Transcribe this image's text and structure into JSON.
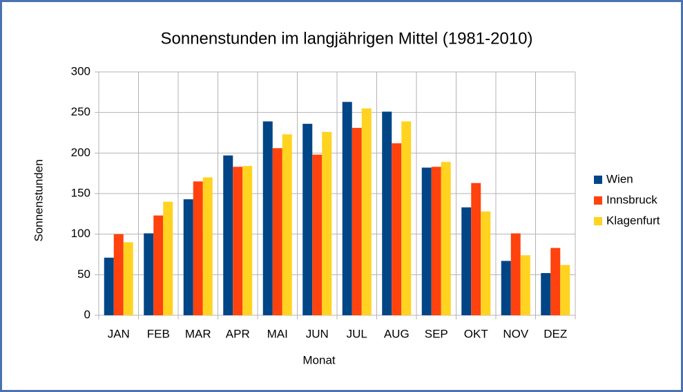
{
  "chart_data": {
    "type": "bar",
    "title": "Sonnenstunden im langjährigen Mittel (1981-2010)",
    "x_label": "Monat",
    "y_label": "Sonnenstunden",
    "categories": [
      "JAN",
      "FEB",
      "MAR",
      "APR",
      "MAI",
      "JUN",
      "JUL",
      "AUG",
      "SEP",
      "OKT",
      "NOV",
      "DEZ"
    ],
    "series": [
      {
        "name": "Wien",
        "color": "#004586",
        "values": [
          71,
          101,
          143,
          197,
          239,
          236,
          263,
          251,
          182,
          133,
          67,
          52
        ]
      },
      {
        "name": "Innsbruck",
        "color": "#ff420e",
        "values": [
          100,
          123,
          165,
          183,
          206,
          198,
          231,
          212,
          183,
          163,
          101,
          83
        ]
      },
      {
        "name": "Klagenfurt",
        "color": "#ffd320",
        "values": [
          90,
          140,
          170,
          184,
          223,
          226,
          255,
          239,
          189,
          128,
          74,
          62
        ]
      }
    ],
    "ylim": [
      0,
      300
    ],
    "yticks": [
      0,
      50,
      100,
      150,
      200,
      250,
      300
    ],
    "grid": true,
    "legend": "right"
  }
}
